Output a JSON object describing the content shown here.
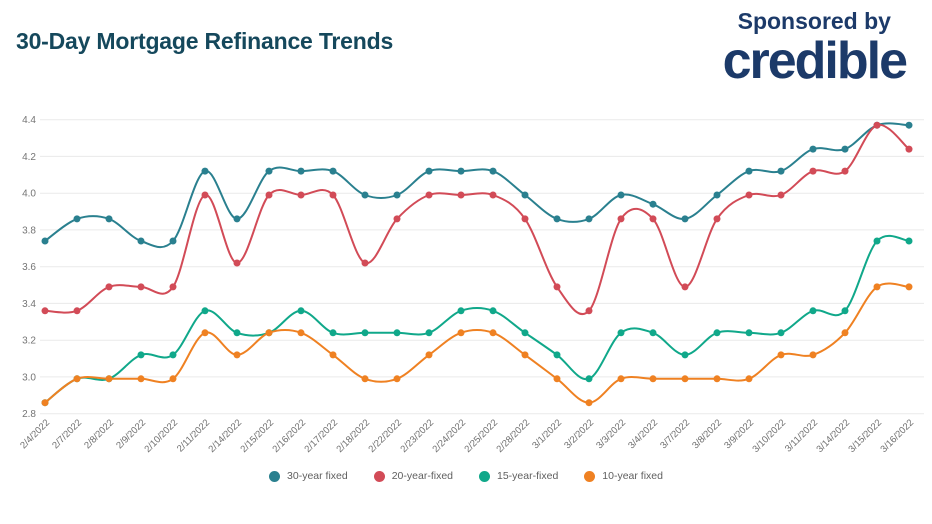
{
  "header": {
    "title": "30-Day Mortgage Refinance Trends",
    "sponsor": {
      "label": "Sponsored by",
      "brand": "credible"
    }
  },
  "colors": {
    "title": "#15485c",
    "brand_navy": "#1c3a69",
    "grid": "#eaeaea",
    "axis_text": "#757575",
    "legend_text": "#5f5f5f"
  },
  "chart_data": {
    "type": "line",
    "title": "30-Day Mortgage Refinance Trends",
    "xlabel": "",
    "ylabel": "",
    "ylim": [
      2.8,
      4.4
    ],
    "ytick_step": 0.2,
    "grid": true,
    "legend_position": "bottom",
    "point_markers": true,
    "categories": [
      "2/4/2022",
      "2/7/2022",
      "2/8/2022",
      "2/9/2022",
      "2/10/2022",
      "2/11/2022",
      "2/14/2022",
      "2/15/2022",
      "2/16/2022",
      "2/17/2022",
      "2/18/2022",
      "2/22/2022",
      "2/23/2022",
      "2/24/2022",
      "2/25/2022",
      "2/28/2022",
      "3/1/2022",
      "3/2/2022",
      "3/3/2022",
      "3/4/2022",
      "3/7/2022",
      "3/8/2022",
      "3/9/2022",
      "3/10/2022",
      "3/11/2022",
      "3/14/2022",
      "3/15/2022",
      "3/16/2022"
    ],
    "series": [
      {
        "name": "30-year fixed",
        "color": "#2a808f",
        "values": [
          3.74,
          3.86,
          3.86,
          3.74,
          3.74,
          4.12,
          3.86,
          4.12,
          4.12,
          4.12,
          3.99,
          3.99,
          4.12,
          4.12,
          4.12,
          3.99,
          3.86,
          3.86,
          3.99,
          3.94,
          3.86,
          3.99,
          4.12,
          4.12,
          4.24,
          4.24,
          4.37,
          4.37
        ]
      },
      {
        "name": "20-year-fixed",
        "color": "#d24b57",
        "values": [
          3.36,
          3.36,
          3.49,
          3.49,
          3.49,
          3.99,
          3.62,
          3.99,
          3.99,
          3.99,
          3.62,
          3.86,
          3.99,
          3.99,
          3.99,
          3.86,
          3.49,
          3.36,
          3.86,
          3.86,
          3.49,
          3.86,
          3.99,
          3.99,
          4.12,
          4.12,
          4.37,
          4.24
        ]
      },
      {
        "name": "15-year-fixed",
        "color": "#10a88a",
        "values": [
          2.86,
          2.99,
          2.99,
          3.12,
          3.12,
          3.36,
          3.24,
          3.24,
          3.36,
          3.24,
          3.24,
          3.24,
          3.24,
          3.36,
          3.36,
          3.24,
          3.12,
          2.99,
          3.24,
          3.24,
          3.12,
          3.24,
          3.24,
          3.24,
          3.36,
          3.36,
          3.74,
          3.74
        ]
      },
      {
        "name": "10-year fixed",
        "color": "#ef8122",
        "values": [
          2.86,
          2.99,
          2.99,
          2.99,
          2.99,
          3.24,
          3.12,
          3.24,
          3.24,
          3.12,
          2.99,
          2.99,
          3.12,
          3.24,
          3.24,
          3.12,
          2.99,
          2.86,
          2.99,
          2.99,
          2.99,
          2.99,
          2.99,
          3.12,
          3.12,
          3.24,
          3.49,
          3.49
        ]
      }
    ]
  }
}
